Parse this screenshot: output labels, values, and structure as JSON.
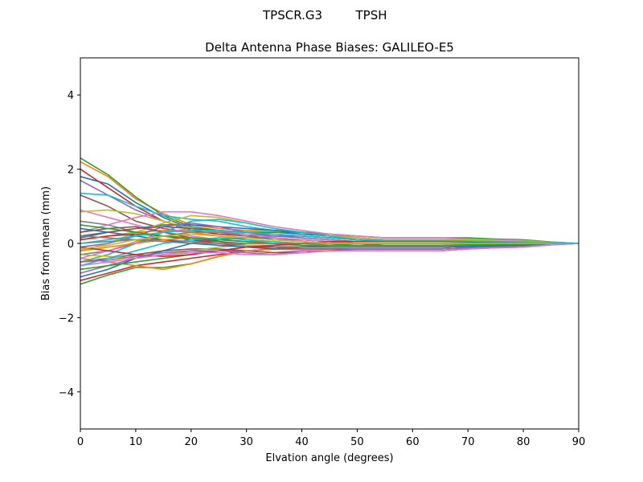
{
  "header": {
    "station": "TPSCR.G3",
    "radome": "TPSH"
  },
  "chart_data": {
    "type": "line",
    "title": "Delta Antenna Phase Biases: GALILEO-E5",
    "xlabel": "Elvation angle (degrees)",
    "ylabel": "Bias from mean (mm)",
    "xlim": [
      0,
      90
    ],
    "ylim": [
      -5,
      5
    ],
    "xticks": [
      0,
      10,
      20,
      30,
      40,
      50,
      60,
      70,
      80,
      90
    ],
    "yticks": [
      -4,
      -2,
      0,
      2,
      4
    ],
    "ytick_labels": [
      "−4",
      "−2",
      "0",
      "2",
      "4"
    ],
    "grid": false,
    "legend": "none",
    "x": [
      0,
      5,
      10,
      15,
      20,
      25,
      30,
      35,
      40,
      45,
      50,
      55,
      60,
      65,
      70,
      75,
      80,
      85,
      90
    ],
    "series": [
      {
        "color": "#1f77b4",
        "values": [
          1.8,
          1.6,
          1.1,
          0.7,
          0.4,
          0.3,
          0.3,
          0.3,
          0.25,
          0.2,
          0.15,
          0.1,
          0.1,
          0.1,
          0.08,
          0.06,
          0.05,
          0.02,
          0
        ]
      },
      {
        "color": "#ff7f0e",
        "values": [
          2.2,
          1.8,
          1.2,
          0.8,
          0.5,
          0.4,
          0.35,
          0.35,
          0.3,
          0.25,
          0.15,
          0.1,
          0.1,
          0.1,
          0.1,
          0.08,
          0.06,
          0.03,
          0
        ]
      },
      {
        "color": "#2ca02c",
        "values": [
          2.3,
          1.85,
          1.25,
          0.75,
          0.45,
          0.35,
          0.3,
          0.3,
          0.3,
          0.25,
          0.2,
          0.15,
          0.15,
          0.15,
          0.15,
          0.12,
          0.1,
          0.04,
          0
        ]
      },
      {
        "color": "#d62728",
        "values": [
          2.0,
          1.5,
          1.0,
          0.6,
          0.35,
          0.25,
          0.2,
          0.2,
          0.2,
          0.15,
          0.1,
          0.08,
          0.08,
          0.06,
          0.05,
          0.04,
          0.03,
          0.01,
          0
        ]
      },
      {
        "color": "#9467bd",
        "values": [
          1.7,
          1.3,
          0.9,
          0.6,
          0.4,
          0.3,
          0.25,
          0.2,
          0.2,
          0.15,
          0.1,
          0.05,
          0.05,
          0.05,
          0.05,
          0.04,
          0.03,
          0.01,
          0
        ]
      },
      {
        "color": "#8c564b",
        "values": [
          1.3,
          1.0,
          0.6,
          0.4,
          0.3,
          0.2,
          0.15,
          0.1,
          0.1,
          0.05,
          0.0,
          -0.05,
          -0.05,
          -0.05,
          -0.05,
          -0.04,
          -0.03,
          -0.01,
          0
        ]
      },
      {
        "color": "#e377c2",
        "values": [
          0.9,
          0.7,
          0.5,
          0.3,
          0.2,
          0.1,
          0.05,
          0.0,
          0.0,
          -0.05,
          -0.05,
          -0.05,
          -0.05,
          -0.05,
          -0.05,
          -0.04,
          -0.03,
          -0.01,
          0
        ]
      },
      {
        "color": "#7f7f7f",
        "values": [
          0.6,
          0.5,
          0.3,
          0.2,
          0.1,
          0.05,
          0.0,
          0.0,
          -0.05,
          -0.05,
          -0.05,
          -0.05,
          -0.05,
          -0.05,
          -0.05,
          -0.04,
          -0.03,
          -0.01,
          0
        ]
      },
      {
        "color": "#bcbd22",
        "values": [
          0.85,
          0.9,
          0.8,
          0.6,
          0.4,
          0.3,
          0.2,
          0.1,
          0.05,
          0.0,
          0.0,
          0.0,
          0.0,
          0.0,
          0.0,
          0.0,
          0.0,
          0.0,
          0
        ]
      },
      {
        "color": "#17becf",
        "values": [
          1.35,
          1.3,
          1.0,
          0.75,
          0.65,
          0.6,
          0.45,
          0.35,
          0.3,
          0.2,
          0.15,
          0.1,
          0.1,
          0.1,
          0.08,
          0.06,
          0.05,
          0.02,
          0
        ]
      },
      {
        "color": "#1f77b4",
        "values": [
          0.2,
          0.3,
          0.4,
          0.5,
          0.5,
          0.45,
          0.4,
          0.35,
          0.3,
          0.2,
          0.1,
          0.05,
          0.05,
          0.05,
          0.05,
          0.04,
          0.03,
          0.01,
          0
        ]
      },
      {
        "color": "#ff7f0e",
        "values": [
          0.1,
          0.2,
          0.3,
          0.35,
          0.3,
          0.2,
          0.1,
          0.0,
          -0.05,
          -0.1,
          -0.1,
          -0.1,
          -0.1,
          -0.1,
          -0.08,
          -0.06,
          -0.05,
          -0.02,
          0
        ]
      },
      {
        "color": "#2ca02c",
        "values": [
          -1.1,
          -0.85,
          -0.65,
          -0.65,
          -0.55,
          -0.35,
          -0.2,
          -0.15,
          -0.1,
          -0.05,
          0.0,
          0.0,
          0.0,
          0.0,
          0.0,
          0.0,
          0.0,
          0.0,
          0
        ]
      },
      {
        "color": "#d62728",
        "values": [
          -1.0,
          -0.8,
          -0.6,
          -0.5,
          -0.4,
          -0.3,
          -0.2,
          -0.15,
          -0.1,
          -0.1,
          -0.1,
          -0.1,
          -0.1,
          -0.1,
          -0.08,
          -0.06,
          -0.05,
          -0.02,
          0
        ]
      },
      {
        "color": "#9467bd",
        "values": [
          -0.8,
          -0.6,
          -0.4,
          -0.3,
          -0.25,
          -0.2,
          -0.2,
          -0.25,
          -0.2,
          -0.2,
          -0.15,
          -0.15,
          -0.15,
          -0.15,
          -0.12,
          -0.1,
          -0.08,
          -0.03,
          0
        ]
      },
      {
        "color": "#8c564b",
        "values": [
          -0.5,
          -0.4,
          -0.3,
          -0.2,
          -0.15,
          -0.15,
          -0.2,
          -0.25,
          -0.25,
          -0.2,
          -0.2,
          -0.2,
          -0.2,
          -0.2,
          -0.15,
          -0.12,
          -0.1,
          -0.04,
          0
        ]
      },
      {
        "color": "#e377c2",
        "values": [
          0.3,
          0.5,
          0.7,
          0.85,
          0.85,
          0.75,
          0.6,
          0.45,
          0.35,
          0.25,
          0.2,
          0.15,
          0.15,
          0.15,
          0.12,
          0.1,
          0.08,
          0.03,
          0
        ]
      },
      {
        "color": "#7f7f7f",
        "values": [
          -0.3,
          -0.2,
          0.0,
          0.2,
          0.3,
          0.3,
          0.2,
          0.1,
          0.05,
          0.0,
          0.0,
          0.0,
          0.0,
          0.0,
          0.0,
          0.0,
          0.0,
          0.0,
          0
        ]
      },
      {
        "color": "#bcbd22",
        "values": [
          -0.2,
          0.0,
          0.3,
          0.55,
          0.75,
          0.7,
          0.55,
          0.4,
          0.3,
          0.2,
          0.15,
          0.1,
          0.1,
          0.1,
          0.1,
          0.08,
          0.06,
          0.03,
          0
        ]
      },
      {
        "color": "#17becf",
        "values": [
          -0.5,
          -0.3,
          0.0,
          0.3,
          0.6,
          0.65,
          0.55,
          0.4,
          0.3,
          0.2,
          0.1,
          0.05,
          0.05,
          0.05,
          0.05,
          0.04,
          0.03,
          0.01,
          0
        ]
      },
      {
        "color": "#1f77b4",
        "values": [
          -0.9,
          -0.7,
          -0.4,
          -0.2,
          0.0,
          0.1,
          0.15,
          0.15,
          0.1,
          0.05,
          0.0,
          0.0,
          0.0,
          0.0,
          0.0,
          0.0,
          0.0,
          0.0,
          0
        ]
      },
      {
        "color": "#ff7f0e",
        "values": [
          -0.4,
          -0.5,
          -0.6,
          -0.7,
          -0.55,
          -0.35,
          -0.2,
          -0.15,
          -0.1,
          -0.1,
          -0.1,
          -0.1,
          -0.1,
          -0.1,
          -0.08,
          -0.06,
          -0.05,
          -0.02,
          0
        ]
      },
      {
        "color": "#2ca02c",
        "values": [
          -0.7,
          -0.6,
          -0.5,
          -0.4,
          -0.3,
          -0.2,
          -0.1,
          -0.05,
          0.0,
          0.0,
          0.0,
          0.0,
          0.0,
          0.0,
          0.0,
          0.0,
          0.0,
          0.0,
          0
        ]
      },
      {
        "color": "#d62728",
        "values": [
          0.1,
          0.2,
          0.25,
          0.2,
          0.1,
          0.0,
          -0.1,
          -0.15,
          -0.15,
          -0.15,
          -0.15,
          -0.15,
          -0.15,
          -0.15,
          -0.12,
          -0.1,
          -0.08,
          -0.03,
          0
        ]
      },
      {
        "color": "#9467bd",
        "values": [
          -0.1,
          0.0,
          0.2,
          0.45,
          0.55,
          0.45,
          0.3,
          0.2,
          0.15,
          0.1,
          0.05,
          0.05,
          0.05,
          0.05,
          0.05,
          0.04,
          0.03,
          0.01,
          0
        ]
      },
      {
        "color": "#8c564b",
        "values": [
          0.3,
          0.4,
          0.45,
          0.3,
          0.15,
          0.05,
          -0.05,
          -0.1,
          -0.1,
          -0.1,
          -0.1,
          -0.1,
          -0.1,
          -0.1,
          -0.08,
          -0.06,
          -0.05,
          -0.02,
          0
        ]
      },
      {
        "color": "#e377c2",
        "values": [
          -0.4,
          -0.2,
          0.05,
          0.3,
          0.4,
          0.35,
          0.25,
          0.15,
          0.1,
          0.05,
          0.0,
          0.0,
          0.0,
          0.0,
          0.0,
          0.0,
          0.0,
          0.0,
          0
        ]
      },
      {
        "color": "#7f7f7f",
        "values": [
          0.0,
          0.05,
          0.1,
          0.1,
          0.05,
          0.0,
          -0.05,
          -0.1,
          -0.1,
          -0.1,
          -0.1,
          -0.1,
          -0.1,
          -0.1,
          -0.08,
          -0.06,
          -0.05,
          -0.02,
          0
        ]
      },
      {
        "color": "#bcbd22",
        "values": [
          -0.3,
          -0.35,
          -0.4,
          -0.3,
          -0.2,
          -0.1,
          -0.05,
          -0.05,
          -0.05,
          -0.05,
          -0.05,
          -0.05,
          -0.05,
          -0.05,
          -0.04,
          -0.03,
          -0.02,
          -0.01,
          0
        ]
      },
      {
        "color": "#17becf",
        "values": [
          -0.6,
          -0.4,
          -0.2,
          0.0,
          0.1,
          0.15,
          0.1,
          0.05,
          0.0,
          0.0,
          0.0,
          0.0,
          0.0,
          0.0,
          0.0,
          0.0,
          0.0,
          0.0,
          0
        ]
      },
      {
        "color": "#1f77b4",
        "values": [
          0.4,
          0.3,
          0.2,
          0.1,
          0.0,
          -0.05,
          -0.1,
          -0.1,
          -0.1,
          -0.1,
          -0.1,
          -0.1,
          -0.1,
          -0.1,
          -0.08,
          -0.06,
          -0.05,
          -0.02,
          0
        ]
      },
      {
        "color": "#ff7f0e",
        "values": [
          -0.2,
          -0.1,
          0.0,
          0.1,
          0.15,
          0.1,
          0.05,
          0.0,
          0.0,
          0.0,
          0.0,
          0.0,
          0.0,
          0.0,
          0.0,
          0.0,
          0.0,
          0.0,
          0
        ]
      },
      {
        "color": "#2ca02c",
        "values": [
          0.5,
          0.4,
          0.3,
          0.2,
          0.15,
          0.1,
          0.05,
          0.0,
          -0.05,
          -0.05,
          -0.05,
          -0.05,
          -0.05,
          -0.05,
          -0.04,
          -0.03,
          -0.02,
          -0.01,
          0
        ]
      },
      {
        "color": "#d62728",
        "values": [
          -0.1,
          -0.2,
          -0.3,
          -0.35,
          -0.3,
          -0.2,
          -0.1,
          -0.05,
          0.0,
          0.05,
          0.05,
          0.05,
          0.05,
          0.05,
          0.04,
          0.03,
          0.02,
          0.01,
          0
        ]
      },
      {
        "color": "#9467bd",
        "values": [
          -0.5,
          -0.45,
          -0.35,
          -0.25,
          -0.2,
          -0.2,
          -0.25,
          -0.3,
          -0.25,
          -0.2,
          -0.15,
          -0.15,
          -0.15,
          -0.15,
          -0.12,
          -0.1,
          -0.08,
          -0.03,
          0
        ]
      },
      {
        "color": "#8c564b",
        "values": [
          0.15,
          0.3,
          0.4,
          0.45,
          0.4,
          0.35,
          0.3,
          0.25,
          0.2,
          0.15,
          0.1,
          0.05,
          0.05,
          0.05,
          0.05,
          0.04,
          0.03,
          0.01,
          0
        ]
      },
      {
        "color": "#e377c2",
        "values": [
          -0.6,
          -0.5,
          -0.4,
          -0.3,
          -0.25,
          -0.25,
          -0.3,
          -0.3,
          -0.25,
          -0.2,
          -0.2,
          -0.2,
          -0.2,
          -0.2,
          -0.15,
          -0.12,
          -0.1,
          -0.04,
          0
        ]
      },
      {
        "color": "#7f7f7f",
        "values": [
          0.2,
          0.15,
          0.1,
          0.05,
          0.0,
          0.0,
          0.0,
          0.0,
          0.0,
          0.0,
          0.0,
          0.0,
          0.0,
          0.0,
          0.0,
          0.0,
          0.0,
          0.0,
          0
        ]
      },
      {
        "color": "#bcbd22",
        "values": [
          -0.15,
          -0.05,
          0.1,
          0.2,
          0.25,
          0.2,
          0.15,
          0.1,
          0.05,
          0.0,
          0.0,
          0.0,
          0.0,
          0.0,
          0.0,
          0.0,
          0.0,
          0.0,
          0
        ]
      },
      {
        "color": "#17becf",
        "values": [
          0.0,
          0.1,
          0.2,
          0.3,
          0.35,
          0.35,
          0.3,
          0.25,
          0.2,
          0.15,
          0.1,
          0.08,
          0.08,
          0.08,
          0.06,
          0.05,
          0.04,
          0.02,
          0
        ]
      }
    ]
  }
}
